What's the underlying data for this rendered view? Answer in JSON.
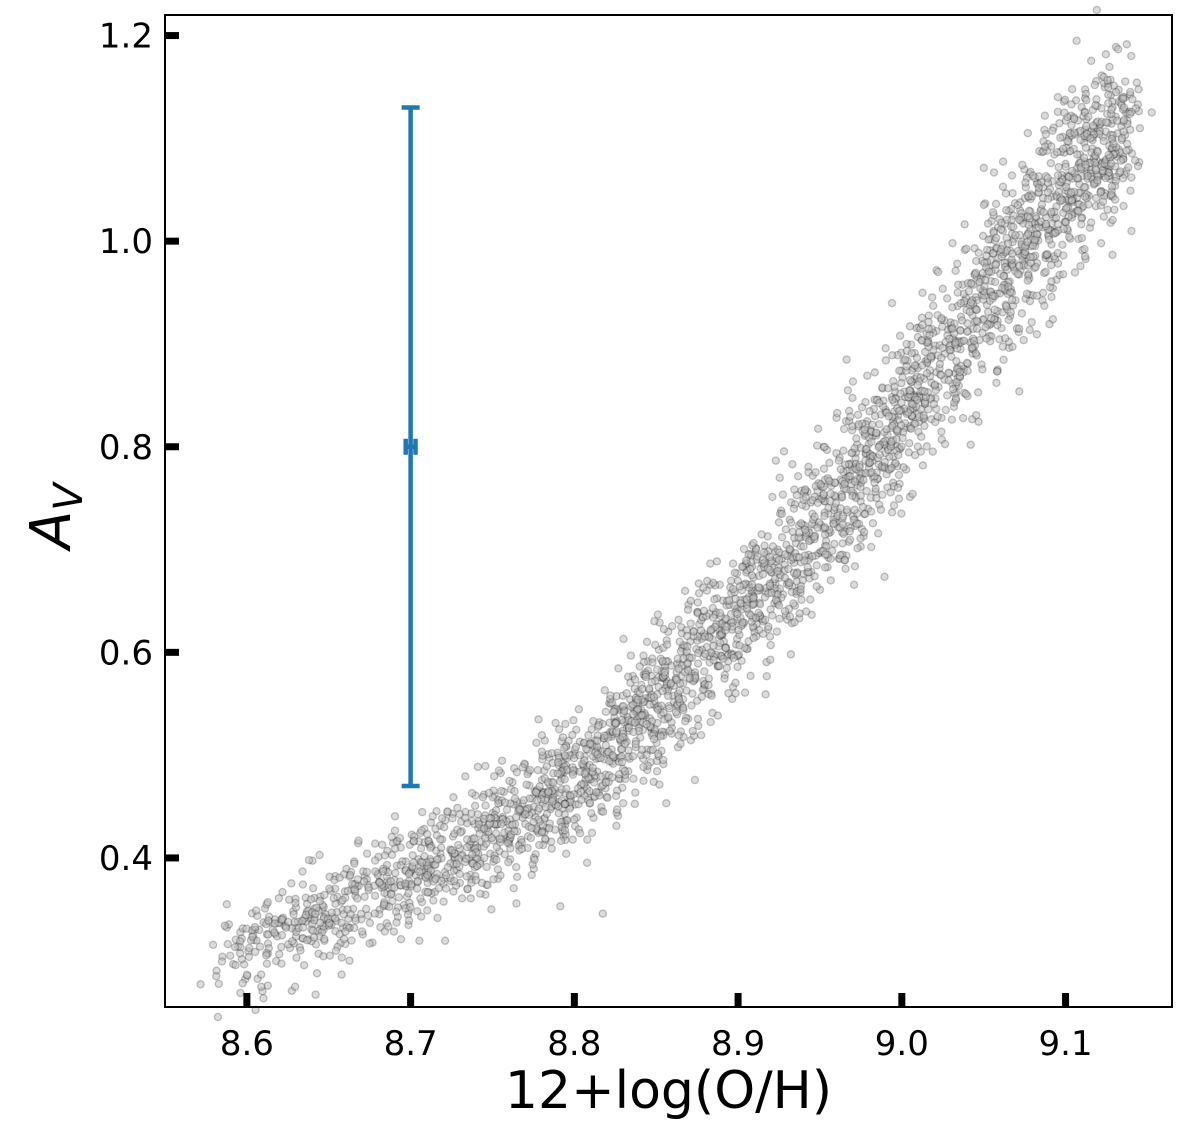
{
  "chart_data": {
    "type": "scatter",
    "xlabel": "12+log(O/H)",
    "ylabel_main": "A",
    "ylabel_sub": "V",
    "xlim": [
      8.55,
      9.165
    ],
    "ylim": [
      0.255,
      1.22
    ],
    "xticks": [
      8.6,
      8.7,
      8.8,
      8.9,
      9.0,
      9.1
    ],
    "xtick_labels": [
      "8.6",
      "8.7",
      "8.8",
      "8.9",
      "9.0",
      "9.1"
    ],
    "yticks": [
      0.4,
      0.6,
      0.8,
      1.0,
      1.2
    ],
    "ytick_labels": [
      "0.4",
      "0.6",
      "0.8",
      "1.0",
      "1.2"
    ],
    "grid": false,
    "scatter": {
      "color": "#000000",
      "opacity": 0.22,
      "point_count": 3200,
      "x_range": [
        8.58,
        9.14
      ],
      "trend": [
        [
          8.58,
          0.3
        ],
        [
          8.7,
          0.38
        ],
        [
          8.8,
          0.47
        ],
        [
          8.9,
          0.63
        ],
        [
          9.0,
          0.83
        ],
        [
          9.1,
          1.05
        ],
        [
          9.14,
          1.12
        ]
      ]
    },
    "errorbar": {
      "color": "#1f77b4",
      "x": 8.7,
      "y": 0.8,
      "y_low": 0.47,
      "y_high": 1.13,
      "x_low": 8.697,
      "x_high": 8.703
    }
  }
}
